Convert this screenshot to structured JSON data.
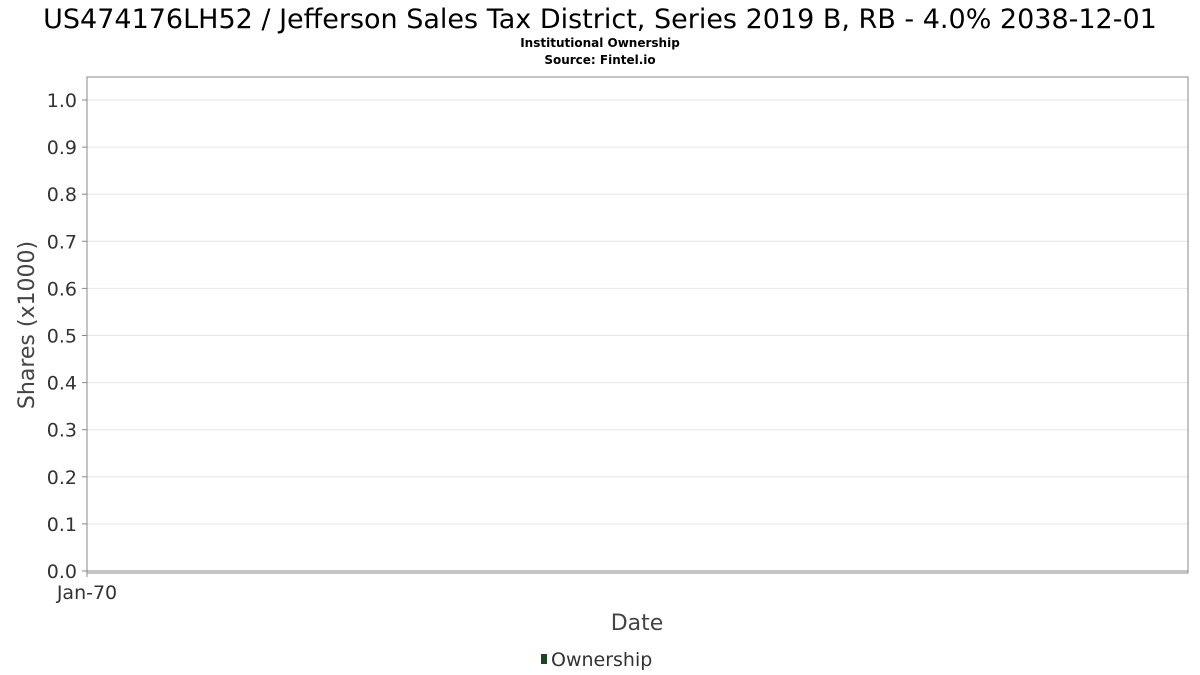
{
  "chart_data": {
    "type": "bar",
    "title": "US474176LH52 / Jefferson Sales Tax District, Series 2019 B, RB - 4.0% 2038-12-01",
    "subtitle": "Institutional Ownership",
    "source": "Source: Fintel.io",
    "xlabel": "Date",
    "ylabel": "Shares (x1000)",
    "ylim": [
      0,
      1.0
    ],
    "y_ticks": [
      "0.0",
      "0.1",
      "0.2",
      "0.3",
      "0.4",
      "0.5",
      "0.6",
      "0.7",
      "0.8",
      "0.9",
      "1.0"
    ],
    "x_ticks": [
      "Jan-70"
    ],
    "grid": true,
    "legend_position": "bottom-center",
    "series": [
      {
        "name": "Ownership",
        "color": "#1e4620",
        "values": []
      }
    ]
  }
}
